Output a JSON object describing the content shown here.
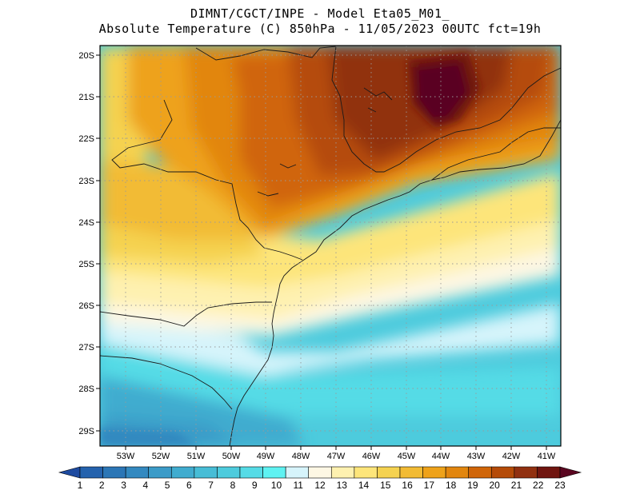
{
  "header": {
    "line1": "DIMNT/CGCT/INPE -  Model Eta05_M01_",
    "line2": "Absolute Temperature (C) 850hPa -  11/05/2023 00UTC fct=19h"
  },
  "axes": {
    "lat_labels": [
      "20S",
      "21S",
      "22S",
      "23S",
      "24S",
      "25S",
      "26S",
      "27S",
      "28S",
      "29S"
    ],
    "lon_labels": [
      "53W",
      "52W",
      "51W",
      "50W",
      "49W",
      "48W",
      "47W",
      "46W",
      "45W",
      "44W",
      "43W",
      "42W",
      "41W"
    ]
  },
  "colorbar": {
    "labels": [
      "1",
      "2",
      "3",
      "4",
      "5",
      "6",
      "7",
      "8",
      "9",
      "10",
      "11",
      "12",
      "13",
      "14",
      "15",
      "16",
      "17",
      "18",
      "19",
      "20",
      "21",
      "22",
      "23"
    ],
    "colors": [
      "#1d4aa0",
      "#2462ad",
      "#2b76b6",
      "#3389c0",
      "#3b9bc8",
      "#40accf",
      "#47bdd6",
      "#4dcbdd",
      "#55dbe6",
      "#5ef2f2",
      "#d6f4fb",
      "#fdf7e4",
      "#fef1b0",
      "#fde57a",
      "#f5d250",
      "#f2bb34",
      "#eea21a",
      "#e2860e",
      "#d06508",
      "#b54b08",
      "#913010",
      "#70150f",
      "#5a0620"
    ]
  },
  "map_data": {
    "type": "contour-filled",
    "variable": "Absolute Temperature (C) 850hPa",
    "lon_range": [
      -53.6,
      -40.5
    ],
    "lat_range": [
      -29.4,
      -19.9
    ],
    "min_value": 5,
    "max_value": 23
  }
}
